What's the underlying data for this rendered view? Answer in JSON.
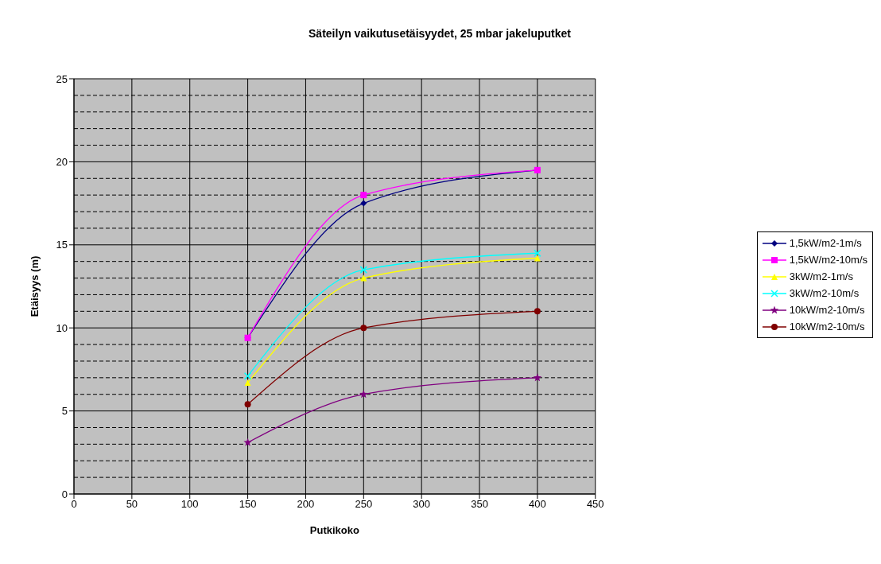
{
  "chart_data": {
    "type": "line",
    "title": "Säteilyn vaikutusetäisyydet, 25 mbar jakeluputket",
    "xlabel": "Putkikoko",
    "ylabel": "Etäisyys (m)",
    "x": [
      150,
      250,
      400
    ],
    "series": [
      {
        "name": "1,5kW/m2-1m/s",
        "color": "#000080",
        "marker": "diamond",
        "values": [
          9.4,
          17.5,
          19.5
        ]
      },
      {
        "name": "1,5kW/m2-10m/s",
        "color": "#ff00ff",
        "marker": "square",
        "values": [
          9.4,
          18.0,
          19.5
        ]
      },
      {
        "name": "3kW/m2-1m/s",
        "color": "#ffff00",
        "marker": "triangle",
        "values": [
          6.7,
          13.0,
          14.2
        ]
      },
      {
        "name": "3kW/m2-10m/s",
        "color": "#00ffff",
        "marker": "cross",
        "values": [
          7.1,
          13.5,
          14.5
        ]
      },
      {
        "name": "10kW/m2-10m/s",
        "color": "#800080",
        "marker": "star",
        "values": [
          3.1,
          6.0,
          7.0
        ]
      },
      {
        "name": "10kW/m2-10m/s",
        "color": "#800000",
        "marker": "circle",
        "values": [
          5.4,
          10.0,
          11.0
        ]
      }
    ],
    "xlim": [
      0,
      450
    ],
    "xticks": [
      0,
      50,
      100,
      150,
      200,
      250,
      300,
      350,
      400,
      450
    ],
    "ylim": [
      0,
      25
    ],
    "yticks": [
      0,
      {
        "value": 1,
        "label": null
      },
      {
        "value": 2,
        "label": null
      },
      {
        "value": 3,
        "label": null
      },
      {
        "value": 4,
        "label": null
      },
      5,
      {
        "value": 6,
        "label": null
      },
      {
        "value": 7,
        "label": null
      },
      {
        "value": 8,
        "label": null
      },
      {
        "value": 9,
        "label": null
      },
      10,
      {
        "value": 11,
        "label": null
      },
      {
        "value": 12,
        "label": null
      },
      {
        "value": 13,
        "label": null
      },
      {
        "value": 14,
        "label": null
      },
      15,
      {
        "value": 16,
        "label": null
      },
      {
        "value": 17,
        "label": null
      },
      {
        "value": 18,
        "label": null
      },
      {
        "value": 19,
        "label": null
      },
      20,
      {
        "value": 21,
        "label": null
      },
      {
        "value": 22,
        "label": null
      },
      {
        "value": 23,
        "label": null
      },
      {
        "value": 24,
        "label": null
      },
      25
    ],
    "grid": true,
    "legend": "right",
    "line_style": "solid"
  }
}
